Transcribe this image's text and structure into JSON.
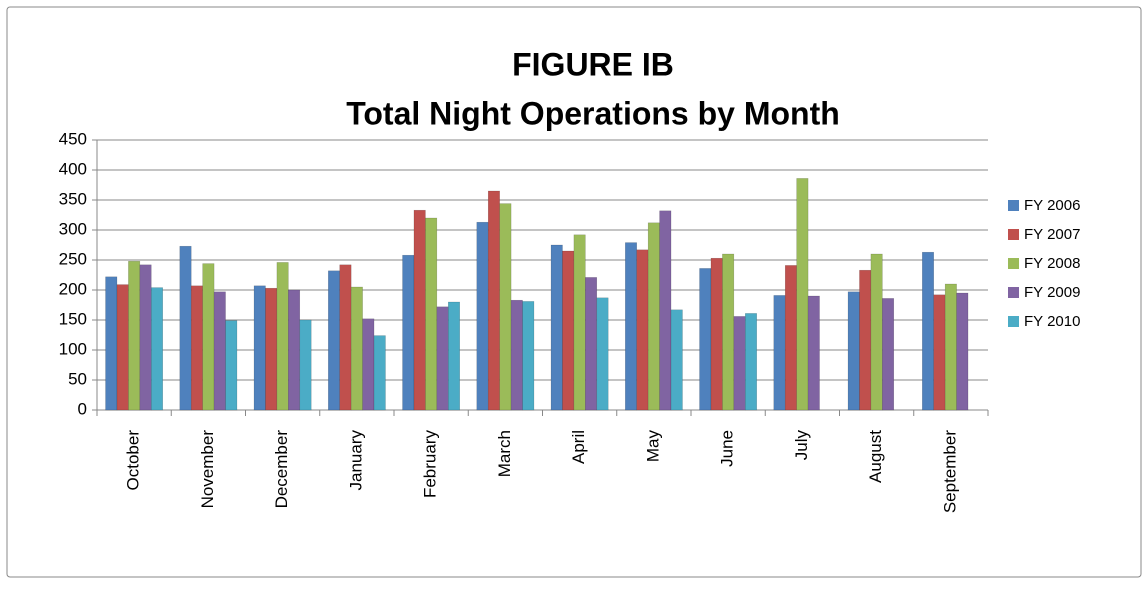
{
  "chart_data": {
    "type": "bar",
    "title": [
      "FIGURE IB",
      "Total Night Operations by Month"
    ],
    "categories": [
      "October",
      "November",
      "December",
      "January",
      "February",
      "March",
      "April",
      "May",
      "June",
      "July",
      "August",
      "September"
    ],
    "series": [
      {
        "name": "FY 2006",
        "color": "#4f81bd",
        "values": [
          222,
          273,
          207,
          232,
          258,
          313,
          275,
          279,
          236,
          191,
          197,
          263
        ]
      },
      {
        "name": "FY 2007",
        "color": "#c0504d",
        "values": [
          209,
          207,
          203,
          242,
          333,
          365,
          265,
          267,
          253,
          241,
          233,
          192
        ]
      },
      {
        "name": "FY 2008",
        "color": "#9bbb59",
        "values": [
          248,
          244,
          246,
          205,
          320,
          344,
          292,
          312,
          260,
          386,
          260,
          210
        ]
      },
      {
        "name": "FY 2009",
        "color": "#8064a2",
        "values": [
          242,
          197,
          200,
          152,
          172,
          183,
          221,
          332,
          156,
          190,
          186,
          195
        ]
      },
      {
        "name": "FY 2010",
        "color": "#4bacc6",
        "values": [
          204,
          149,
          150,
          124,
          180,
          181,
          187,
          167,
          161,
          null,
          null,
          null
        ]
      }
    ],
    "ylim": [
      0,
      450
    ],
    "yticks": [
      0,
      50,
      100,
      150,
      200,
      250,
      300,
      350,
      400,
      450
    ],
    "grid": true,
    "legend": "right"
  }
}
